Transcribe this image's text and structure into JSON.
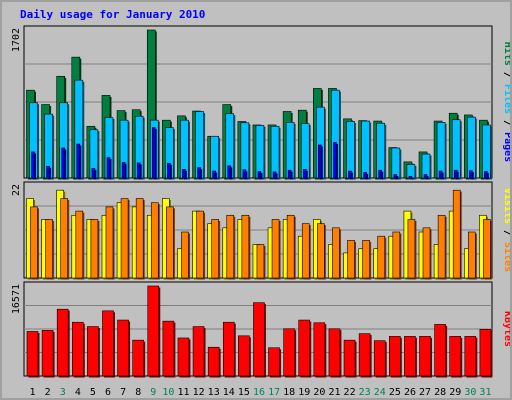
{
  "title": "Daily usage for January 2010",
  "colors": {
    "hits": "#008040",
    "files": "#00c0ff",
    "pages": "#0000ff",
    "visits": "#ffff00",
    "sites": "#ff8000",
    "kbytes": "#ff0000",
    "weekend_day": "#00805c",
    "weekday": "#000000",
    "panel_bg": "#c0c0c0"
  },
  "chart_data": [
    {
      "type": "bar",
      "name": "hits-files-pages",
      "ymax_label": "1702",
      "ylim": [
        0,
        1702
      ],
      "legend": [
        "Pages",
        "Files",
        "Hits"
      ],
      "categories": [
        "1",
        "2",
        "3",
        "4",
        "5",
        "6",
        "7",
        "8",
        "9",
        "10",
        "11",
        "12",
        "13",
        "14",
        "15",
        "16",
        "17",
        "18",
        "19",
        "20",
        "21",
        "22",
        "23",
        "24",
        "25",
        "26",
        "27",
        "28",
        "29",
        "30",
        "31"
      ],
      "series": [
        {
          "name": "Hits",
          "values": [
            1010,
            845,
            1170,
            1390,
            595,
            950,
            775,
            785,
            1702,
            665,
            715,
            770,
            480,
            845,
            650,
            610,
            610,
            765,
            780,
            1030,
            1030,
            680,
            660,
            655,
            350,
            185,
            300,
            655,
            745,
            725,
            665
          ]
        },
        {
          "name": "Files",
          "values": [
            865,
            735,
            865,
            1125,
            555,
            695,
            665,
            710,
            665,
            580,
            665,
            765,
            480,
            740,
            635,
            605,
            595,
            640,
            625,
            815,
            1010,
            650,
            655,
            630,
            345,
            155,
            275,
            640,
            670,
            700,
            610
          ]
        },
        {
          "name": "Pages",
          "values": [
            300,
            135,
            345,
            390,
            110,
            235,
            180,
            175,
            580,
            170,
            100,
            120,
            80,
            140,
            95,
            75,
            70,
            90,
            100,
            380,
            410,
            80,
            65,
            90,
            40,
            20,
            40,
            80,
            90,
            85,
            75
          ]
        }
      ]
    },
    {
      "type": "bar",
      "name": "visits-sites",
      "ymax_label": "22",
      "ylim": [
        0,
        22
      ],
      "legend": [
        "Sites",
        "Visits"
      ],
      "categories": [
        "1",
        "2",
        "3",
        "4",
        "5",
        "6",
        "7",
        "8",
        "9",
        "10",
        "11",
        "12",
        "13",
        "14",
        "15",
        "16",
        "17",
        "18",
        "19",
        "20",
        "21",
        "22",
        "23",
        "24",
        "25",
        "26",
        "27",
        "28",
        "29",
        "30",
        "31"
      ],
      "series": [
        {
          "name": "Visits",
          "values": [
            19,
            14,
            21,
            15,
            14,
            15,
            18,
            17,
            15,
            19,
            7,
            16,
            13,
            12,
            14,
            8,
            12,
            14,
            10,
            14,
            8,
            6,
            7,
            7,
            10,
            16,
            11,
            8,
            16,
            7,
            15
          ]
        },
        {
          "name": "Sites",
          "values": [
            17,
            14,
            19,
            16,
            14,
            17,
            19,
            19,
            18,
            17,
            11,
            16,
            14,
            15,
            15,
            8,
            14,
            15,
            13,
            13,
            12,
            9,
            9,
            10,
            11,
            14,
            12,
            15,
            21,
            11,
            14
          ]
        }
      ]
    },
    {
      "type": "bar",
      "name": "kbytes",
      "ymax_label": "16571",
      "ylim": [
        0,
        16571
      ],
      "legend": [
        "KBytes"
      ],
      "categories": [
        "1",
        "2",
        "3",
        "4",
        "5",
        "6",
        "7",
        "8",
        "9",
        "10",
        "11",
        "12",
        "13",
        "14",
        "15",
        "16",
        "17",
        "18",
        "19",
        "20",
        "21",
        "22",
        "23",
        "24",
        "25",
        "26",
        "27",
        "28",
        "29",
        "30",
        "31"
      ],
      "series": [
        {
          "name": "KBytes",
          "values": [
            8200,
            8400,
            12300,
            9900,
            9100,
            12000,
            10300,
            6600,
            16571,
            10100,
            7000,
            9100,
            5300,
            9900,
            7400,
            13500,
            5200,
            8700,
            10300,
            9800,
            8700,
            6600,
            7800,
            6500,
            7300,
            7300,
            7300,
            9500,
            7300,
            7300,
            8600
          ]
        }
      ]
    }
  ],
  "weekend_days": [
    "3",
    "9",
    "10",
    "16",
    "17",
    "23",
    "24",
    "30",
    "31"
  ],
  "kbytes_label": "KBytes"
}
